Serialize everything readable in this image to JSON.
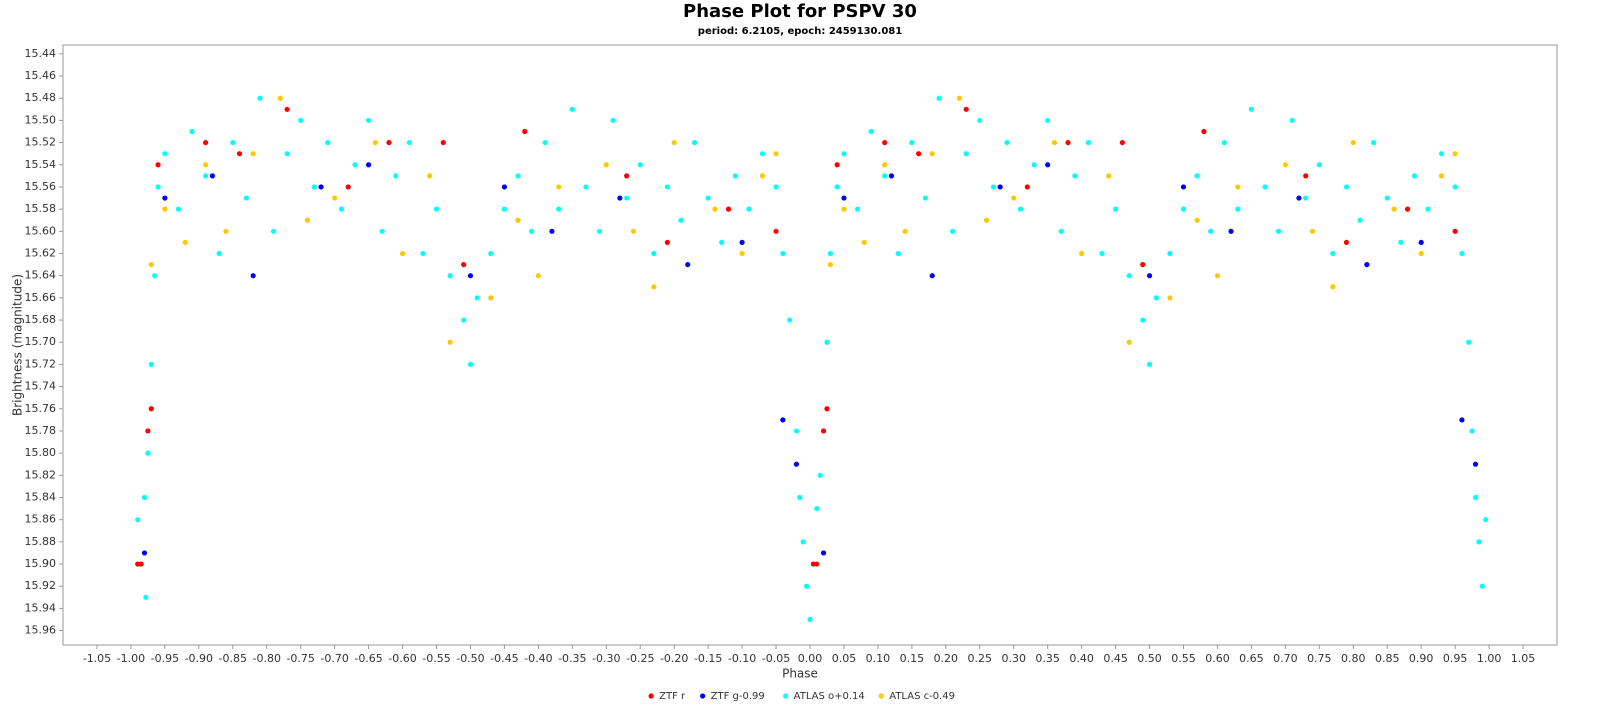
{
  "chart_data": {
    "type": "scatter",
    "title": "Phase Plot for PSPV 30",
    "subtitle": "period: 6.2105, epoch: 2459130.081",
    "x_label": "Phase",
    "y_label": "Brightness (magnitude)",
    "legend": "bottom",
    "xlim": [
      -1.1,
      1.1
    ],
    "ylim": [
      15.973,
      15.432
    ],
    "xticks": [
      -1.05,
      {
        "value": -1,
        "label": "-1.00"
      },
      -0.95,
      {
        "value": -0.9,
        "label": "-0.90"
      },
      -0.85,
      {
        "value": -0.8,
        "label": "-0.80"
      },
      -0.75,
      {
        "value": -0.7,
        "label": "-0.70"
      },
      -0.65,
      {
        "value": -0.6,
        "label": "-0.60"
      },
      -0.55,
      {
        "value": -0.5,
        "label": "-0.50"
      },
      -0.45,
      {
        "value": -0.4,
        "label": "-0.40"
      },
      -0.35,
      {
        "value": -0.3,
        "label": "-0.30"
      },
      -0.25,
      {
        "value": -0.2,
        "label": "-0.20"
      },
      -0.15,
      {
        "value": -0.1,
        "label": "-0.10"
      },
      -0.05,
      {
        "value": 0,
        "label": "0.00"
      },
      0.05,
      {
        "value": 0.1,
        "label": "0.10"
      },
      0.15,
      {
        "value": 0.2,
        "label": "0.20"
      },
      0.25,
      {
        "value": 0.3,
        "label": "0.30"
      },
      0.35,
      {
        "value": 0.4,
        "label": "0.40"
      },
      0.45,
      {
        "value": 0.5,
        "label": "0.50"
      },
      0.55,
      {
        "value": 0.6,
        "label": "0.60"
      },
      0.65,
      {
        "value": 0.7,
        "label": "0.70"
      },
      0.75,
      {
        "value": 0.8,
        "label": "0.80"
      },
      0.85,
      {
        "value": 0.9,
        "label": "0.90"
      },
      0.95,
      {
        "value": 1,
        "label": "1.00"
      },
      1.05
    ],
    "yticks": [
      15.44,
      15.46,
      15.48,
      {
        "value": 15.5,
        "label": "15.50"
      },
      15.52,
      15.54,
      15.56,
      15.58,
      {
        "value": 15.6,
        "label": "15.60"
      },
      15.62,
      15.64,
      15.66,
      15.68,
      {
        "value": 15.7,
        "label": "15.70"
      },
      15.72,
      15.74,
      15.76,
      15.78,
      {
        "value": 15.8,
        "label": "15.80"
      },
      15.82,
      15.84,
      15.86,
      15.88,
      {
        "value": 15.9,
        "label": "15.90"
      },
      15.92,
      15.94,
      15.96
    ],
    "series": [
      {
        "name": "ATLAS o+0.14",
        "color": "#00ffff",
        "x": [
          -0.99,
          -0.985,
          -0.98,
          -0.978,
          -0.975,
          -0.97,
          -0.965,
          -0.96,
          -0.95,
          -0.93,
          -0.91,
          -0.89,
          -0.87,
          -0.85,
          -0.83,
          -0.81,
          -0.79,
          -0.77,
          -0.75,
          -0.73,
          -0.71,
          -0.69,
          -0.67,
          -0.65,
          -0.63,
          -0.61,
          -0.59,
          -0.57,
          -0.55,
          -0.53,
          -0.51,
          -0.5,
          -0.49,
          -0.47,
          -0.45,
          -0.43,
          -0.41,
          -0.39,
          -0.37,
          -0.35,
          -0.33,
          -0.31,
          -0.29,
          -0.27,
          -0.25,
          -0.23,
          -0.21,
          -0.19,
          -0.17,
          -0.15,
          -0.13,
          -0.11,
          -0.09,
          -0.07,
          -0.05,
          -0.04,
          -0.03,
          -0.02,
          -0.015,
          -0.01,
          -0.005,
          0,
          0.005,
          0.01,
          0.015,
          0.02,
          0.025,
          0.03,
          0.04,
          0.05,
          0.07,
          0.09,
          0.11,
          0.13,
          0.15,
          0.17,
          0.19,
          0.21,
          0.23,
          0.25,
          0.27,
          0.29,
          0.31,
          0.33,
          0.35,
          0.37,
          0.39,
          0.41,
          0.43,
          0.45,
          0.47,
          0.49,
          0.5,
          0.51,
          0.53,
          0.55,
          0.57,
          0.59,
          0.61,
          0.63,
          0.65,
          0.67,
          0.69,
          0.71,
          0.73,
          0.75,
          0.77,
          0.79,
          0.81,
          0.83,
          0.85,
          0.87,
          0.89,
          0.91,
          0.93,
          0.95,
          0.96,
          0.97,
          0.975,
          0.98,
          0.985,
          0.99,
          0.995
        ],
        "values": [
          15.86,
          15.9,
          15.84,
          15.93,
          15.8,
          15.72,
          15.64,
          15.56,
          15.53,
          15.58,
          15.51,
          15.55,
          15.62,
          15.52,
          15.57,
          15.48,
          15.6,
          15.53,
          15.5,
          15.56,
          15.52,
          15.58,
          15.54,
          15.5,
          15.6,
          15.55,
          15.52,
          15.62,
          15.58,
          15.64,
          15.68,
          15.72,
          15.66,
          15.62,
          15.58,
          15.55,
          15.6,
          15.52,
          15.58,
          15.49,
          15.56,
          15.6,
          15.5,
          15.57,
          15.54,
          15.62,
          15.56,
          15.59,
          15.52,
          15.57,
          15.61,
          15.55,
          15.58,
          15.53,
          15.56,
          15.62,
          15.68,
          15.78,
          15.84,
          15.88,
          15.92,
          15.95,
          15.9,
          15.85,
          15.82,
          15.78,
          15.7,
          15.62,
          15.56,
          15.53,
          15.58,
          15.51,
          15.55,
          15.62,
          15.52,
          15.57,
          15.48,
          15.6,
          15.53,
          15.5,
          15.56,
          15.52,
          15.58,
          15.54,
          15.5,
          15.6,
          15.55,
          15.52,
          15.62,
          15.58,
          15.64,
          15.68,
          15.72,
          15.66,
          15.62,
          15.58,
          15.55,
          15.6,
          15.52,
          15.58,
          15.49,
          15.56,
          15.6,
          15.5,
          15.57,
          15.54,
          15.62,
          15.56,
          15.59,
          15.52,
          15.57,
          15.61,
          15.55,
          15.58,
          15.53,
          15.56,
          15.62,
          15.7,
          15.78,
          15.84,
          15.88,
          15.92,
          15.86
        ]
      },
      {
        "name": "ATLAS c-0.49",
        "color": "#ffc800",
        "x": [
          -0.97,
          -0.95,
          -0.92,
          -0.89,
          -0.86,
          -0.82,
          -0.78,
          -0.74,
          -0.7,
          -0.64,
          -0.6,
          -0.56,
          -0.53,
          -0.47,
          -0.43,
          -0.4,
          -0.37,
          -0.3,
          -0.26,
          -0.23,
          -0.2,
          -0.14,
          -0.1,
          -0.07,
          -0.05,
          0.03,
          0.05,
          0.08,
          0.11,
          0.14,
          0.18,
          0.22,
          0.26,
          0.3,
          0.36,
          0.4,
          0.44,
          0.47,
          0.53,
          0.57,
          0.6,
          0.63,
          0.7,
          0.74,
          0.77,
          0.8,
          0.86,
          0.9,
          0.93,
          0.95
        ],
        "values": [
          15.63,
          15.58,
          15.61,
          15.54,
          15.6,
          15.53,
          15.48,
          15.59,
          15.57,
          15.52,
          15.62,
          15.55,
          15.7,
          15.66,
          15.59,
          15.64,
          15.56,
          15.54,
          15.6,
          15.65,
          15.52,
          15.58,
          15.62,
          15.55,
          15.53,
          15.63,
          15.58,
          15.61,
          15.54,
          15.6,
          15.53,
          15.48,
          15.59,
          15.57,
          15.52,
          15.62,
          15.55,
          15.7,
          15.66,
          15.59,
          15.64,
          15.56,
          15.54,
          15.6,
          15.65,
          15.52,
          15.58,
          15.62,
          15.55,
          15.53
        ]
      },
      {
        "name": "ZTF g-0.99",
        "color": "#0000ff",
        "x": [
          -0.98,
          -0.95,
          -0.88,
          -0.82,
          -0.72,
          -0.65,
          -0.5,
          -0.45,
          -0.38,
          -0.28,
          -0.18,
          -0.1,
          -0.04,
          -0.02,
          0.02,
          0.05,
          0.12,
          0.18,
          0.28,
          0.35,
          0.5,
          0.55,
          0.62,
          0.72,
          0.82,
          0.9,
          0.96,
          0.98
        ],
        "values": [
          15.89,
          15.57,
          15.55,
          15.64,
          15.56,
          15.54,
          15.64,
          15.56,
          15.6,
          15.57,
          15.63,
          15.61,
          15.77,
          15.81,
          15.89,
          15.57,
          15.55,
          15.64,
          15.56,
          15.54,
          15.64,
          15.56,
          15.6,
          15.57,
          15.63,
          15.61,
          15.77,
          15.81
        ]
      },
      {
        "name": "ZTF r",
        "color": "#ff0000",
        "x": [
          -0.99,
          -0.985,
          -0.975,
          -0.97,
          -0.96,
          -0.89,
          -0.84,
          -0.77,
          -0.68,
          -0.62,
          -0.54,
          -0.51,
          -0.42,
          -0.27,
          -0.21,
          -0.12,
          -0.05,
          0.005,
          0.01,
          0.02,
          0.025,
          0.04,
          0.11,
          0.16,
          0.23,
          0.32,
          0.38,
          0.46,
          0.49,
          0.58,
          0.73,
          0.79,
          0.88,
          0.95
        ],
        "values": [
          15.9,
          15.9,
          15.78,
          15.76,
          15.54,
          15.52,
          15.53,
          15.49,
          15.56,
          15.52,
          15.52,
          15.63,
          15.51,
          15.55,
          15.61,
          15.58,
          15.6,
          15.9,
          15.9,
          15.78,
          15.76,
          15.54,
          15.52,
          15.53,
          15.49,
          15.56,
          15.52,
          15.52,
          15.63,
          15.51,
          15.55,
          15.61,
          15.58,
          15.6
        ]
      }
    ],
    "legend_order": [
      "ZTF r",
      "ZTF g-0.99",
      "ATLAS o+0.14",
      "ATLAS c-0.49"
    ]
  }
}
